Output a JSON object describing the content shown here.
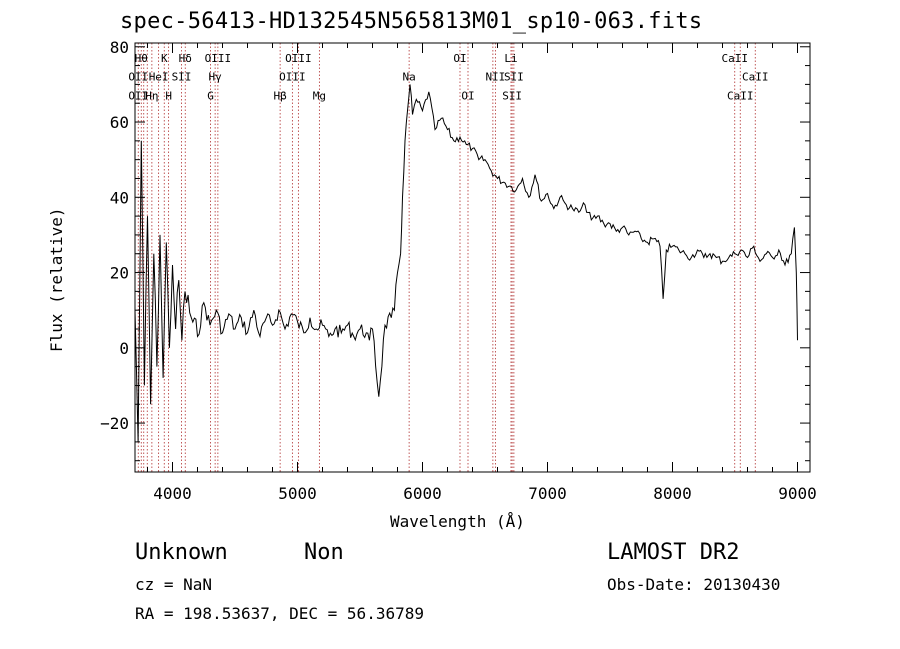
{
  "chart_data": {
    "type": "line",
    "title": "spec-56413-HD132545N565813M01_sp10-063.fits",
    "xlabel": "Wavelength (Å)",
    "ylabel": "Flux (relative)",
    "xlim": [
      3700,
      9100
    ],
    "ylim": [
      -33,
      81
    ],
    "xticks": [
      4000,
      5000,
      6000,
      7000,
      8000,
      9000
    ],
    "yticks": [
      -20,
      0,
      20,
      40,
      60,
      80
    ],
    "xtick_labels": [
      "4000",
      "5000",
      "6000",
      "7000",
      "8000",
      "9000"
    ],
    "ytick_labels": [
      "−20",
      "0",
      "20",
      "40",
      "60",
      "80"
    ],
    "grid": false,
    "series": [
      {
        "x": [
          3700,
          3725,
          3750,
          3775,
          3800,
          3825,
          3850,
          3875,
          3900,
          3925,
          3950,
          3975,
          4000,
          4025,
          4050,
          4075,
          4100,
          4150,
          4200,
          4250,
          4300,
          4350,
          4400,
          4450,
          4500,
          4550,
          4600,
          4650,
          4700,
          4750,
          4800,
          4850,
          4900,
          4950,
          5000,
          5050,
          5100,
          5150,
          5200,
          5250,
          5300,
          5350,
          5400,
          5450,
          5500,
          5550,
          5575,
          5600,
          5650,
          5700,
          5750,
          5775,
          5800,
          5825,
          5840,
          5860,
          5880,
          5900,
          5920,
          5950,
          6000,
          6050,
          6100,
          6150,
          6200,
          6250,
          6300,
          6350,
          6400,
          6450,
          6500,
          6550,
          6600,
          6650,
          6700,
          6750,
          6800,
          6850,
          6900,
          6950,
          7000,
          7050,
          7100,
          7150,
          7200,
          7250,
          7300,
          7350,
          7400,
          7450,
          7500,
          7550,
          7600,
          7650,
          7700,
          7750,
          7800,
          7850,
          7900,
          7925,
          7950,
          8000,
          8050,
          8100,
          8150,
          8200,
          8250,
          8300,
          8350,
          8400,
          8450,
          8500,
          8550,
          8600,
          8650,
          8700,
          8750,
          8800,
          8850,
          8900,
          8950,
          8975,
          8990,
          9000
        ],
        "y": [
          10,
          -25,
          55,
          -10,
          35,
          -15,
          25,
          -5,
          30,
          -8,
          28,
          0,
          22,
          5,
          18,
          2,
          15,
          8,
          3,
          12,
          6,
          10,
          4,
          9,
          5,
          8,
          4,
          10,
          3,
          8,
          6,
          10,
          5,
          9,
          7,
          4,
          8,
          5,
          6,
          3,
          5,
          4,
          6,
          3,
          5,
          4,
          2,
          5,
          -13,
          6,
          8,
          10,
          20,
          25,
          40,
          55,
          63,
          70,
          62,
          66,
          63,
          68,
          58,
          61,
          58,
          55,
          56,
          54,
          53,
          50,
          50,
          47,
          45,
          44,
          43,
          42,
          45,
          40,
          46,
          39,
          41,
          37,
          40,
          38,
          37,
          36,
          38,
          34,
          35,
          33,
          33,
          31,
          32,
          30,
          31,
          29,
          28,
          29,
          27,
          13,
          26,
          27,
          26,
          25,
          24,
          26,
          24,
          25,
          24,
          23,
          24,
          25,
          26,
          24,
          27,
          23,
          25,
          24,
          26,
          22,
          25,
          32,
          20,
          2
        ]
      }
    ],
    "annotations": {
      "line_wavelengths": [
        3726,
        3750,
        3770,
        3798,
        3835,
        3889,
        3934,
        3969,
        4072,
        4102,
        4304,
        4341,
        4363,
        4861,
        4959,
        5007,
        5175,
        5893,
        6300,
        6364,
        6563,
        6583,
        6708,
        6717,
        6731,
        8498,
        8542,
        8662
      ],
      "line_labels": [
        {
          "text": "Hθ",
          "x": 3750,
          "y": 76
        },
        {
          "text": "K",
          "x": 3934,
          "y": 76
        },
        {
          "text": "Hδ",
          "x": 4102,
          "y": 76
        },
        {
          "text": "OIII",
          "x": 4363,
          "y": 76
        },
        {
          "text": "OIII",
          "x": 5007,
          "y": 76
        },
        {
          "text": "OI",
          "x": 6300,
          "y": 76
        },
        {
          "text": "Li",
          "x": 6708,
          "y": 76
        },
        {
          "text": "CaII",
          "x": 8498,
          "y": 76
        },
        {
          "text": "OII",
          "x": 3726,
          "y": 71
        },
        {
          "text": "HeI",
          "x": 3889,
          "y": 71
        },
        {
          "text": "SII",
          "x": 4072,
          "y": 71
        },
        {
          "text": "Hγ",
          "x": 4341,
          "y": 71
        },
        {
          "text": "OIII",
          "x": 4959,
          "y": 71
        },
        {
          "text": "Na",
          "x": 5893,
          "y": 71
        },
        {
          "text": "NII",
          "x": 6583,
          "y": 71
        },
        {
          "text": "SII",
          "x": 6731,
          "y": 71
        },
        {
          "text": "CaII",
          "x": 8662,
          "y": 71
        },
        {
          "text": "OII",
          "x": 3726,
          "y": 66
        },
        {
          "text": "Hη",
          "x": 3835,
          "y": 66
        },
        {
          "text": "H",
          "x": 3969,
          "y": 66
        },
        {
          "text": "G",
          "x": 4304,
          "y": 66
        },
        {
          "text": "Hβ",
          "x": 4861,
          "y": 66
        },
        {
          "text": "Mg",
          "x": 5175,
          "y": 66
        },
        {
          "text": "OI",
          "x": 6364,
          "y": 66
        },
        {
          "text": "SII",
          "x": 6717,
          "y": 66
        },
        {
          "text": "CaII",
          "x": 8542,
          "y": 66
        }
      ]
    }
  },
  "info": {
    "object_class": "Unknown",
    "subclass": "Non",
    "survey": "LAMOST DR2",
    "cz": "cz = NaN",
    "obs_date": "Obs-Date: 20130430",
    "coords": "RA = 198.53637, DEC =  56.36789"
  }
}
